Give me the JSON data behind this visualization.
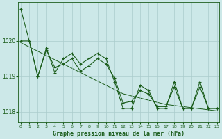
{
  "x": [
    0,
    1,
    2,
    3,
    4,
    5,
    6,
    7,
    8,
    9,
    10,
    11,
    12,
    13,
    14,
    15,
    16,
    17,
    18,
    19,
    20,
    21,
    22,
    23
  ],
  "y_raw": [
    1020.9,
    1020.0,
    1019.0,
    1019.8,
    1019.1,
    1019.5,
    1019.65,
    1019.35,
    1019.5,
    1019.65,
    1019.5,
    1018.85,
    1018.1,
    1018.1,
    1018.75,
    1018.6,
    1018.1,
    1018.1,
    1018.85,
    1018.1,
    1018.1,
    1018.85,
    1018.1,
    1018.1
  ],
  "y_smooth": [
    1020.0,
    1020.0,
    1019.0,
    1019.75,
    1019.25,
    1019.35,
    1019.5,
    1019.15,
    1019.3,
    1019.5,
    1019.35,
    1018.95,
    1018.25,
    1018.3,
    1018.6,
    1018.5,
    1018.15,
    1018.15,
    1018.7,
    1018.1,
    1018.1,
    1018.7,
    1018.1,
    1018.1
  ],
  "y_trend": [
    1019.95,
    1019.83,
    1019.71,
    1019.59,
    1019.47,
    1019.35,
    1019.23,
    1019.11,
    1018.99,
    1018.87,
    1018.75,
    1018.63,
    1018.51,
    1018.45,
    1018.39,
    1018.33,
    1018.27,
    1018.21,
    1018.18,
    1018.15,
    1018.12,
    1018.09,
    1018.06,
    1018.03
  ],
  "ylim": [
    1017.7,
    1021.1
  ],
  "yticks": [
    1018,
    1019,
    1020
  ],
  "xticks": [
    0,
    1,
    2,
    3,
    4,
    5,
    6,
    7,
    8,
    9,
    10,
    11,
    12,
    13,
    14,
    15,
    16,
    17,
    18,
    19,
    20,
    21,
    22,
    23
  ],
  "xlabel": "Graphe pression niveau de la mer (hPa)",
  "bg_color": "#cce8e8",
  "grid_color": "#aacccc",
  "line_color": "#1a5c1a",
  "tick_label_color": "#1a5c1a",
  "xlabel_color": "#1a5c1a",
  "axis_color": "#1a5c1a"
}
